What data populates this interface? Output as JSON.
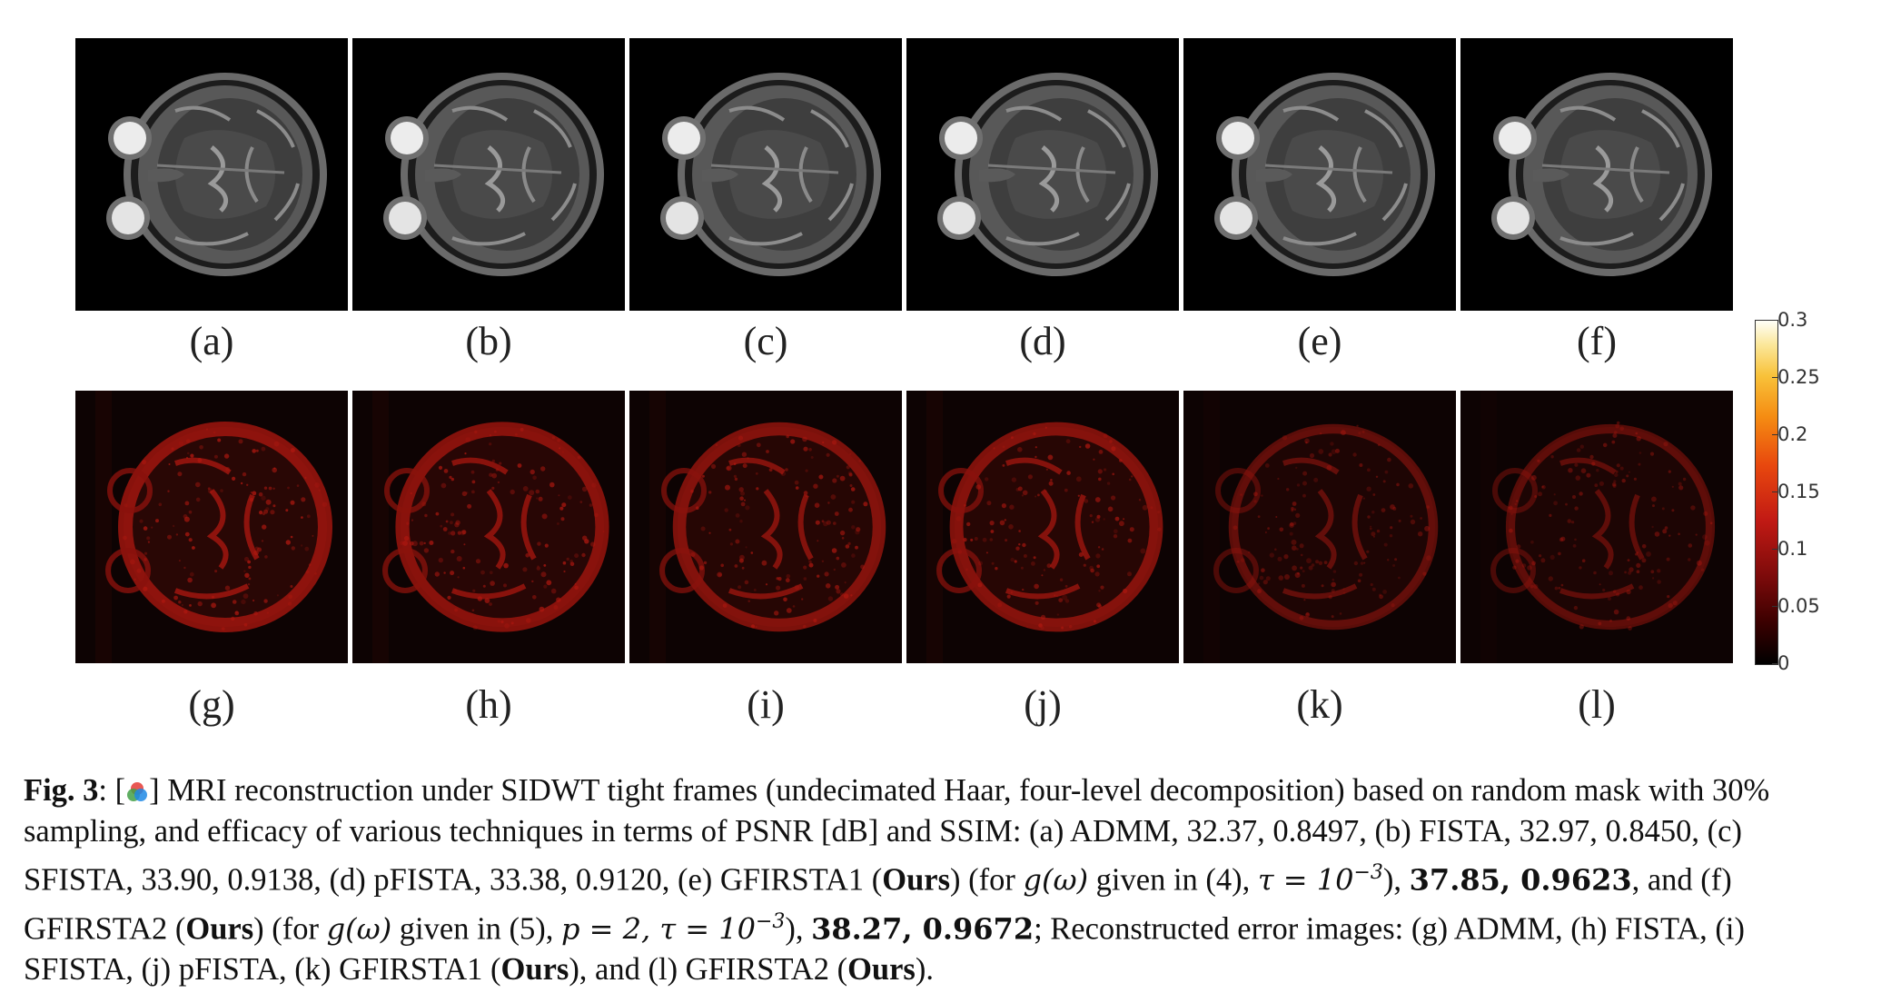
{
  "figure": {
    "top_row": [
      {
        "label": "(a)",
        "method": "ADMM"
      },
      {
        "label": "(b)",
        "method": "FISTA"
      },
      {
        "label": "(c)",
        "method": "SFISTA"
      },
      {
        "label": "(d)",
        "method": "pFISTA"
      },
      {
        "label": "(e)",
        "method": "GFIRSTA1"
      },
      {
        "label": "(f)",
        "method": "GFIRSTA2"
      }
    ],
    "bottom_row": [
      {
        "label": "(g)",
        "error_level": 1.0
      },
      {
        "label": "(h)",
        "error_level": 0.92
      },
      {
        "label": "(i)",
        "error_level": 0.85
      },
      {
        "label": "(j)",
        "error_level": 0.88
      },
      {
        "label": "(k)",
        "error_level": 0.45
      },
      {
        "label": "(l)",
        "error_level": 0.42
      }
    ],
    "colorbar": {
      "ticks": [
        "0.3",
        "0.25",
        "0.2",
        "0.15",
        "0.1",
        "0.05",
        "0"
      ],
      "colors": [
        "#000000",
        "#7a0a0a",
        "#c21a14",
        "#e8480e",
        "#f58c12",
        "#f8c23a",
        "#fffff8"
      ]
    }
  },
  "caption": {
    "fig_label": "Fig. 3",
    "colon": ":",
    "l1a": "MRI reconstruction under SIDWT tight frames (undecimated Haar, four-level decomposition) based on random mask with 30%",
    "l2": "sampling, and efficacy of various techniques in terms of PSNR [dB] and SSIM: (a) ADMM, 32.37, 0.8497, (b) FISTA, 32.97, 0.8450, (c)",
    "l3a": "SFISTA, 33.90, 0.9138, (d) pFISTA, 33.38, 0.9120, (e) GFIRSTA1 (",
    "ours": "Ours",
    "l3b": ") (for ",
    "g_omega": "g(ω)",
    "l3c": " given in (4), ",
    "tau_eq": "τ = 10",
    "exp": "−3",
    "l3d": "), ",
    "val_e": "37.85, 0.9623",
    "l3e": ", and (f)",
    "l4a": "GFIRSTA2 (",
    "l4b": ") (for ",
    "l4c": " given in (5), ",
    "p_tau": "p = 2, τ = 10",
    "l4d": "), ",
    "val_f": "38.27, 0.9672",
    "l4e": "; Reconstructed error images:  (g) ADMM, (h) FISTA, (i)",
    "l5a": "SFISTA, (j) pFISTA, (k) GFIRSTA1 (",
    "l5b": "), and (l) GFIRSTA2 (",
    "l5c": ")."
  }
}
